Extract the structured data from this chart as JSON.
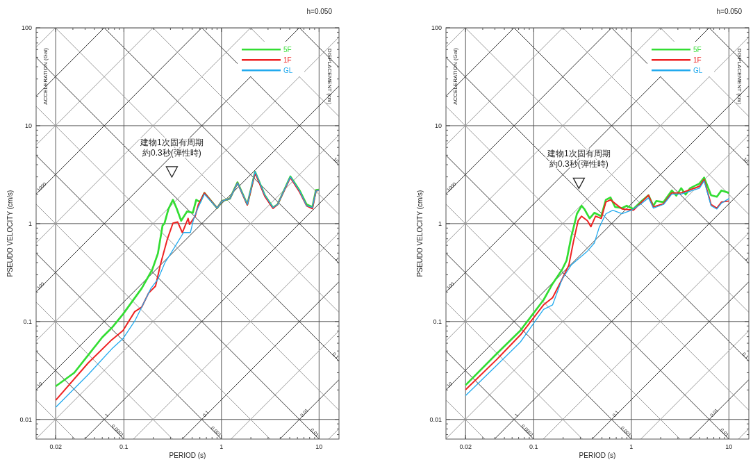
{
  "chart_data": [
    {
      "type": "line",
      "title": "h=0.050",
      "xlabel": "PERIOD (s)",
      "ylabel": "PSEUDO VELOCITY (cm/s)",
      "y2label": "ACCELERATION (Gal)",
      "y3label": "DISPLACEMENT (cm)",
      "log": "xy",
      "grid": true,
      "legend": "top right",
      "xlim": [
        0.0126,
        16
      ],
      "ylim": [
        0.0063,
        100
      ],
      "xticks": [
        0.02,
        0.1,
        1,
        10
      ],
      "yticks": [
        0.01,
        0.1,
        1,
        10,
        100
      ],
      "annotations": [
        {
          "text": "建物1次固有周期約0.3秒(弾性時)",
          "x": 0.31,
          "y": 3.4
        },
        {
          "text": "1000",
          "x": 0.0126,
          "y": 2.005
        },
        {
          "text": "100",
          "x": 0.0126,
          "y": 0.2005
        },
        {
          "text": "10",
          "x": 0.0126,
          "y": 0.02005
        },
        {
          "text": "1",
          "x": 0.0628,
          "y": 0.01
        },
        {
          "text": "0.1",
          "x": 0.628,
          "y": 0.01
        },
        {
          "text": "0.01",
          "x": 6.28,
          "y": 0.01
        },
        {
          "text": "10",
          "x": 16,
          "y": 3.927
        },
        {
          "text": "1",
          "x": 16,
          "y": 0.3927
        },
        {
          "text": "0.1",
          "x": 16,
          "y": 0.03927
        },
        {
          "text": "0.0001",
          "x": 0.09975,
          "y": 0.0063
        },
        {
          "text": "0.001",
          "x": 0.9975,
          "y": 0.0063
        },
        {
          "text": "0.01",
          "x": 9.975,
          "y": 0.0063
        }
      ],
      "series": [
        {
          "name": "5F",
          "color": "#33dd33",
          "x": [
            0.02,
            0.031,
            0.06,
            0.075,
            0.098,
            0.152,
            0.195,
            0.223,
            0.249,
            0.26,
            0.286,
            0.318,
            0.346,
            0.386,
            0.443,
            0.508,
            0.551,
            0.604,
            0.668,
            0.903,
            1.01,
            1.22,
            1.46,
            1.84,
            2.21,
            2.78,
            3.37,
            3.76,
            5.08,
            6.32,
            7.45,
            8.55,
            9.29,
            10
          ],
          "values": [
            0.0218,
            0.03,
            0.069,
            0.086,
            0.119,
            0.218,
            0.338,
            0.495,
            0.957,
            1.0,
            1.41,
            1.75,
            1.44,
            1.07,
            1.33,
            1.29,
            1.75,
            1.66,
            2.06,
            1.44,
            1.7,
            1.8,
            2.64,
            1.57,
            3.38,
            1.95,
            1.46,
            1.57,
            3.03,
            2.18,
            1.57,
            1.48,
            2.2,
            2.22
          ]
        },
        {
          "name": "1F",
          "color": "#ee2222",
          "x": [
            0.02,
            0.043,
            0.075,
            0.098,
            0.129,
            0.152,
            0.179,
            0.211,
            0.236,
            0.278,
            0.318,
            0.355,
            0.397,
            0.455,
            0.47,
            0.537,
            0.58,
            0.668,
            0.903,
            1.01,
            1.22,
            1.46,
            1.84,
            2.21,
            2.78,
            3.37,
            3.76,
            5.08,
            6.32,
            7.45,
            8.55,
            9.29,
            10
          ],
          "values": [
            0.0157,
            0.0377,
            0.065,
            0.081,
            0.126,
            0.14,
            0.195,
            0.23,
            0.377,
            0.689,
            1.01,
            1.04,
            0.81,
            1.13,
            0.98,
            1.19,
            1.57,
            2.06,
            1.44,
            1.7,
            1.8,
            2.6,
            1.55,
            3.3,
            1.9,
            1.43,
            1.57,
            2.95,
            2.1,
            1.52,
            1.42,
            2.15,
            2.2
          ]
        },
        {
          "name": "GL",
          "color": "#22aaee",
          "x": [
            0.02,
            0.043,
            0.075,
            0.098,
            0.129,
            0.152,
            0.189,
            0.223,
            0.263,
            0.302,
            0.346,
            0.408,
            0.48,
            0.52,
            0.58,
            0.668,
            0.903,
            1.01,
            1.22,
            1.46,
            1.84,
            2.21,
            2.78,
            3.37,
            3.76,
            5.08,
            6.32,
            7.45,
            8.55,
            9.29,
            10
          ],
          "values": [
            0.0133,
            0.0287,
            0.0524,
            0.067,
            0.101,
            0.14,
            0.218,
            0.27,
            0.398,
            0.495,
            0.618,
            0.81,
            0.81,
            1.13,
            1.48,
            2.0,
            1.44,
            1.7,
            1.8,
            2.6,
            1.57,
            3.4,
            1.95,
            1.46,
            1.57,
            3.0,
            2.15,
            1.52,
            1.46,
            2.15,
            2.2
          ]
        },
        {
          "color": "#999999",
          "x": [
            12.52,
            16
          ],
          "values": [
            0.0063,
            0.00805
          ]
        },
        {
          "color": "#333333",
          "x": [
            3.958,
            16
          ],
          "values": [
            0.0063,
            0.02546
          ]
        },
        {
          "color": "#999999",
          "x": [
            1.252,
            16
          ],
          "values": [
            0.0063,
            0.0805
          ]
        },
        {
          "color": "#333333",
          "x": [
            0.3958,
            16
          ],
          "values": [
            0.0063,
            0.2546
          ]
        },
        {
          "color": "#999999",
          "x": [
            0.1252,
            16
          ],
          "values": [
            0.0063,
            0.805
          ]
        },
        {
          "color": "#333333",
          "x": [
            0.03958,
            16
          ],
          "values": [
            0.0063,
            2.546
          ]
        },
        {
          "color": "#999999",
          "x": [
            0.0126,
            16
          ],
          "values": [
            0.006342,
            8.05
          ]
        },
        {
          "color": "#333333",
          "x": [
            0.0126,
            16
          ],
          "values": [
            0.02005,
            25.46
          ]
        },
        {
          "color": "#999999",
          "x": [
            0.0126,
            16
          ],
          "values": [
            0.0634,
            80.5
          ]
        },
        {
          "color": "#333333",
          "x": [
            0.0126,
            6.283
          ],
          "values": [
            0.2005,
            100
          ]
        },
        {
          "color": "#999999",
          "x": [
            0.0126,
            1.987
          ],
          "values": [
            0.634,
            100
          ]
        },
        {
          "color": "#333333",
          "x": [
            0.0126,
            0.6283
          ],
          "values": [
            2.005,
            100
          ]
        },
        {
          "color": "#999999",
          "x": [
            0.0126,
            0.1987
          ],
          "values": [
            6.34,
            100
          ]
        },
        {
          "color": "#333333",
          "x": [
            0.0126,
            0.06283
          ],
          "values": [
            20.05,
            100
          ]
        },
        {
          "color": "#999999",
          "x": [
            0.0126,
            0.01987
          ],
          "values": [
            63.4,
            100
          ]
        },
        {
          "color": "#999999",
          "x": [
            0.0126,
            0.03155
          ],
          "values": [
            0.01577,
            0.0063
          ]
        },
        {
          "color": "#333333",
          "x": [
            0.0126,
            0.09975
          ],
          "values": [
            0.04985,
            0.0063
          ]
        },
        {
          "color": "#999999",
          "x": [
            0.0126,
            0.3155
          ],
          "values": [
            0.1577,
            0.0063
          ]
        },
        {
          "color": "#333333",
          "x": [
            0.0126,
            0.9975
          ],
          "values": [
            0.4985,
            0.0063
          ]
        },
        {
          "color": "#999999",
          "x": [
            0.0126,
            3.155
          ],
          "values": [
            1.577,
            0.0063
          ]
        },
        {
          "color": "#333333",
          "x": [
            0.0126,
            9.975
          ],
          "values": [
            4.985,
            0.0063
          ]
        },
        {
          "color": "#999999",
          "x": [
            0.0126,
            16
          ],
          "values": [
            15.77,
            0.01242
          ]
        },
        {
          "color": "#333333",
          "x": [
            0.0126,
            16
          ],
          "values": [
            49.85,
            0.03927
          ]
        },
        {
          "color": "#999999",
          "x": [
            0.01987,
            16
          ],
          "values": [
            100,
            0.1242
          ]
        },
        {
          "color": "#333333",
          "x": [
            0.06283,
            16
          ],
          "values": [
            100,
            0.3927
          ]
        },
        {
          "color": "#999999",
          "x": [
            0.1987,
            16
          ],
          "values": [
            100,
            1.242
          ]
        },
        {
          "color": "#333333",
          "x": [
            0.6283,
            16
          ],
          "values": [
            100,
            3.927
          ]
        },
        {
          "color": "#999999",
          "x": [
            1.987,
            16
          ],
          "values": [
            100,
            12.42
          ]
        },
        {
          "color": "#333333",
          "x": [
            6.283,
            16
          ],
          "values": [
            100,
            39.27
          ]
        }
      ]
    },
    {
      "type": "line",
      "title": "h=0.050",
      "xlabel": "PERIOD (s)",
      "ylabel": "PSEUDO VELOCITY (cm/s)",
      "y2label": "ACCELERATION (Gal)",
      "y3label": "DISPLACEMENT (cm)",
      "log": "xy",
      "grid": true,
      "legend": "top right",
      "xlim": [
        0.0126,
        16
      ],
      "ylim": [
        0.0063,
        100
      ],
      "xticks": [
        0.02,
        0.1,
        1,
        10
      ],
      "yticks": [
        0.01,
        0.1,
        1,
        10,
        100
      ],
      "annotations": [
        {
          "text": "建物1次固有周期約0.3秒(弾性時)",
          "x": 0.29,
          "y": 2.6
        },
        {
          "text": "1000",
          "x": 0.0126,
          "y": 2.005
        },
        {
          "text": "100",
          "x": 0.0126,
          "y": 0.2005
        },
        {
          "text": "10",
          "x": 0.0126,
          "y": 0.02005
        },
        {
          "text": "1",
          "x": 0.0628,
          "y": 0.01
        },
        {
          "text": "0.1",
          "x": 0.628,
          "y": 0.01
        },
        {
          "text": "0.01",
          "x": 6.28,
          "y": 0.01
        },
        {
          "text": "10",
          "x": 16,
          "y": 3.927
        },
        {
          "text": "1",
          "x": 16,
          "y": 0.3927
        },
        {
          "text": "0.1",
          "x": 16,
          "y": 0.03927
        },
        {
          "text": "0.0001",
          "x": 0.09975,
          "y": 0.0063
        },
        {
          "text": "0.001",
          "x": 0.9975,
          "y": 0.0063
        },
        {
          "text": "0.01",
          "x": 9.975,
          "y": 0.0063
        }
      ],
      "series": [
        {
          "name": "5F",
          "color": "#33dd33",
          "x": [
            0.02,
            0.0418,
            0.073,
            0.126,
            0.156,
            0.195,
            0.217,
            0.242,
            0.277,
            0.309,
            0.33,
            0.374,
            0.418,
            0.492,
            0.548,
            0.611,
            0.682,
            0.803,
            0.896,
            1.05,
            1.24,
            1.5,
            1.68,
            1.8,
            2.14,
            2.6,
            2.89,
            3.24,
            3.6,
            4.0,
            5.0,
            5.57,
            6.56,
            7.52,
            8.39,
            10
          ],
          "values": [
            0.0224,
            0.047,
            0.081,
            0.166,
            0.243,
            0.338,
            0.42,
            0.728,
            1.26,
            1.52,
            1.41,
            1.13,
            1.29,
            1.19,
            1.75,
            1.85,
            1.48,
            1.44,
            1.52,
            1.41,
            1.66,
            1.95,
            1.52,
            1.7,
            1.66,
            2.18,
            1.93,
            2.3,
            1.98,
            2.3,
            2.57,
            2.95,
            1.95,
            1.88,
            2.18,
            2.06
          ]
        },
        {
          "name": "1F",
          "color": "#ee2222",
          "x": [
            0.02,
            0.0418,
            0.073,
            0.126,
            0.156,
            0.195,
            0.229,
            0.255,
            0.285,
            0.309,
            0.355,
            0.385,
            0.43,
            0.492,
            0.548,
            0.611,
            0.803,
            1.05,
            1.5,
            1.68,
            2.14,
            2.6,
            3.24,
            5.0,
            5.57,
            6.56,
            7.52,
            8.39,
            10
          ],
          "values": [
            0.0201,
            0.041,
            0.073,
            0.148,
            0.175,
            0.27,
            0.377,
            0.652,
            1.07,
            1.19,
            1.07,
            0.93,
            1.19,
            1.13,
            1.66,
            1.75,
            1.41,
            1.37,
            1.95,
            1.48,
            1.6,
            2.06,
            2.06,
            2.4,
            2.82,
            1.57,
            1.44,
            1.66,
            1.7
          ]
        },
        {
          "name": "GL",
          "color": "#22aaee",
          "x": [
            0.02,
            0.0418,
            0.073,
            0.126,
            0.156,
            0.195,
            0.242,
            0.293,
            0.355,
            0.418,
            0.467,
            0.548,
            0.646,
            0.803,
            1.0,
            1.24,
            1.5,
            1.68,
            2.14,
            2.6,
            3.24,
            5.0,
            5.57,
            6.56,
            7.52,
            8.39,
            10
          ],
          "values": [
            0.0175,
            0.0357,
            0.0618,
            0.133,
            0.148,
            0.27,
            0.377,
            0.444,
            0.524,
            0.634,
            0.906,
            1.26,
            1.37,
            1.26,
            1.37,
            1.57,
            1.83,
            1.44,
            1.57,
            2.0,
            2.0,
            2.3,
            2.73,
            1.52,
            1.41,
            1.62,
            1.8
          ]
        },
        {
          "color": "#999999",
          "x": [
            12.52,
            16
          ],
          "values": [
            0.0063,
            0.00805
          ]
        },
        {
          "color": "#333333",
          "x": [
            3.958,
            16
          ],
          "values": [
            0.0063,
            0.02546
          ]
        },
        {
          "color": "#999999",
          "x": [
            1.252,
            16
          ],
          "values": [
            0.0063,
            0.0805
          ]
        },
        {
          "color": "#333333",
          "x": [
            0.3958,
            16
          ],
          "values": [
            0.0063,
            0.2546
          ]
        },
        {
          "color": "#999999",
          "x": [
            0.1252,
            16
          ],
          "values": [
            0.0063,
            0.805
          ]
        },
        {
          "color": "#333333",
          "x": [
            0.03958,
            16
          ],
          "values": [
            0.0063,
            2.546
          ]
        },
        {
          "color": "#999999",
          "x": [
            0.0126,
            16
          ],
          "values": [
            0.006342,
            8.05
          ]
        },
        {
          "color": "#333333",
          "x": [
            0.0126,
            16
          ],
          "values": [
            0.02005,
            25.46
          ]
        },
        {
          "color": "#999999",
          "x": [
            0.0126,
            16
          ],
          "values": [
            0.0634,
            80.5
          ]
        },
        {
          "color": "#333333",
          "x": [
            0.0126,
            6.283
          ],
          "values": [
            0.2005,
            100
          ]
        },
        {
          "color": "#999999",
          "x": [
            0.0126,
            1.987
          ],
          "values": [
            0.634,
            100
          ]
        },
        {
          "color": "#333333",
          "x": [
            0.0126,
            0.6283
          ],
          "values": [
            2.005,
            100
          ]
        },
        {
          "color": "#999999",
          "x": [
            0.0126,
            0.1987
          ],
          "values": [
            6.34,
            100
          ]
        },
        {
          "color": "#333333",
          "x": [
            0.0126,
            0.06283
          ],
          "values": [
            20.05,
            100
          ]
        },
        {
          "color": "#999999",
          "x": [
            0.0126,
            0.01987
          ],
          "values": [
            63.4,
            100
          ]
        },
        {
          "color": "#999999",
          "x": [
            0.0126,
            0.03155
          ],
          "values": [
            0.01577,
            0.0063
          ]
        },
        {
          "color": "#333333",
          "x": [
            0.0126,
            0.09975
          ],
          "values": [
            0.04985,
            0.0063
          ]
        },
        {
          "color": "#999999",
          "x": [
            0.0126,
            0.3155
          ],
          "values": [
            0.1577,
            0.0063
          ]
        },
        {
          "color": "#333333",
          "x": [
            0.0126,
            0.9975
          ],
          "values": [
            0.4985,
            0.0063
          ]
        },
        {
          "color": "#999999",
          "x": [
            0.0126,
            3.155
          ],
          "values": [
            1.577,
            0.0063
          ]
        },
        {
          "color": "#333333",
          "x": [
            0.0126,
            9.975
          ],
          "values": [
            4.985,
            0.0063
          ]
        },
        {
          "color": "#999999",
          "x": [
            0.0126,
            16
          ],
          "values": [
            15.77,
            0.01242
          ]
        },
        {
          "color": "#333333",
          "x": [
            0.0126,
            16
          ],
          "values": [
            49.85,
            0.03927
          ]
        },
        {
          "color": "#999999",
          "x": [
            0.01987,
            16
          ],
          "values": [
            100,
            0.1242
          ]
        },
        {
          "color": "#333333",
          "x": [
            0.06283,
            16
          ],
          "values": [
            100,
            0.3927
          ]
        },
        {
          "color": "#999999",
          "x": [
            0.1987,
            16
          ],
          "values": [
            100,
            1.242
          ]
        },
        {
          "color": "#333333",
          "x": [
            0.6283,
            16
          ],
          "values": [
            100,
            3.927
          ]
        },
        {
          "color": "#999999",
          "x": [
            1.987,
            16
          ],
          "values": [
            100,
            12.42
          ]
        },
        {
          "color": "#333333",
          "x": [
            6.283,
            16
          ],
          "values": [
            100,
            39.27
          ]
        }
      ]
    }
  ]
}
